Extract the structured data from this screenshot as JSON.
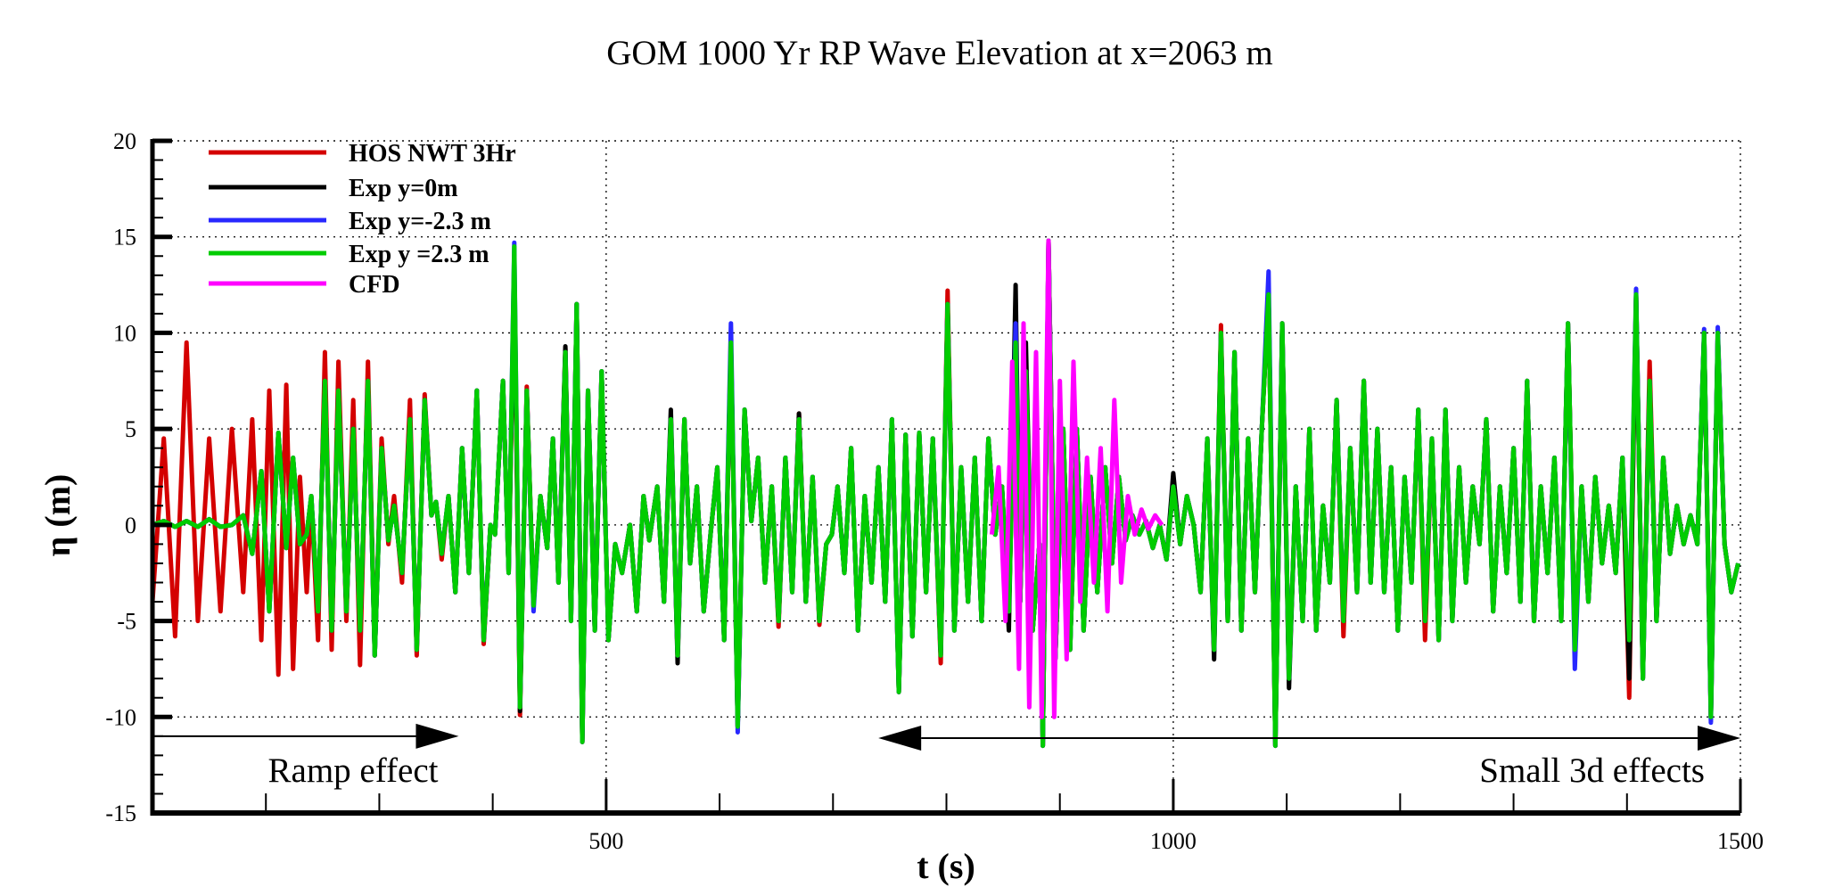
{
  "chart_data": {
    "type": "line",
    "title": "GOM 1000 Yr RP Wave Elevation at x=2063 m",
    "xlabel": "t (s)",
    "ylabel": "η (m)",
    "xlim": [
      100,
      1500
    ],
    "ylim": [
      -15,
      20
    ],
    "x_ticks": [
      500,
      1000,
      1500
    ],
    "x_minor_step": 100,
    "y_ticks": [
      -15,
      -10,
      -5,
      0,
      5,
      10,
      15,
      20
    ],
    "y_minor_step": 1,
    "grid": true,
    "legend_position": "top-left",
    "t": [
      100,
      110,
      120,
      130,
      140,
      150,
      160,
      170,
      180,
      188,
      196,
      203,
      211,
      218,
      224,
      230,
      236,
      240,
      246,
      252,
      258,
      264,
      271,
      277,
      283,
      290,
      296,
      302,
      308,
      313,
      320,
      327,
      333,
      340,
      346,
      350,
      355,
      361,
      367,
      373,
      379,
      386,
      392,
      398,
      402,
      409,
      414,
      419,
      424,
      430,
      436,
      442,
      448,
      453,
      458,
      464,
      469,
      474,
      479,
      484,
      490,
      496,
      502,
      508,
      514,
      521,
      527,
      533,
      538,
      545,
      551,
      557,
      563,
      569,
      574,
      580,
      586,
      592,
      598,
      604,
      610,
      616,
      622,
      628,
      634,
      640,
      646,
      652,
      658,
      664,
      670,
      676,
      682,
      688,
      694,
      699,
      704,
      710,
      716,
      722,
      728,
      734,
      740,
      746,
      752,
      758,
      764,
      770,
      776,
      782,
      788,
      795,
      801,
      807,
      813,
      819,
      825,
      831,
      837,
      843,
      849,
      855,
      861,
      865,
      870,
      876,
      882,
      885,
      890,
      896,
      903,
      909,
      915,
      921,
      927,
      933,
      940,
      946,
      952,
      958,
      964,
      970,
      976,
      982,
      988,
      994,
      1000,
      1006,
      1012,
      1018,
      1024,
      1030,
      1036,
      1042,
      1048,
      1054,
      1060,
      1066,
      1072,
      1078,
      1084,
      1090,
      1096,
      1102,
      1108,
      1114,
      1120,
      1126,
      1132,
      1138,
      1144,
      1150,
      1156,
      1162,
      1168,
      1174,
      1180,
      1186,
      1192,
      1198,
      1204,
      1210,
      1216,
      1222,
      1228,
      1234,
      1240,
      1246,
      1252,
      1258,
      1264,
      1270,
      1276,
      1282,
      1288,
      1294,
      1300,
      1306,
      1312,
      1318,
      1324,
      1330,
      1336,
      1342,
      1348,
      1354,
      1360,
      1366,
      1372,
      1378,
      1384,
      1390,
      1396,
      1402,
      1408,
      1414,
      1420,
      1426,
      1432,
      1438,
      1444,
      1450,
      1456,
      1462,
      1468,
      1474,
      1480,
      1486,
      1492,
      1498
    ],
    "series": [
      {
        "name": "HOS NWT 3Hr",
        "color": "#d40000",
        "values": [
          -4,
          4.5,
          -5.8,
          9.5,
          -5,
          4.5,
          -4.5,
          5,
          -3.5,
          5.5,
          -6,
          7,
          -7.8,
          7.3,
          -7.5,
          2.5,
          -3.5,
          1.5,
          -6,
          9,
          -6.5,
          8.5,
          -5,
          6.5,
          -7.3,
          8.5,
          -6.8,
          4.5,
          -1,
          1.5,
          -3,
          6.5,
          -6.8,
          6.8,
          0.5,
          1.2,
          -1.8,
          1.5,
          -3.5,
          4,
          -2.5,
          7,
          -6.2,
          0,
          -0.5,
          7.5,
          -2.5,
          13,
          -9.9,
          7.2,
          -4.2,
          1.5,
          -1.2,
          4.5,
          -3,
          9.2,
          -5,
          11.5,
          -11.3,
          7,
          -5.5,
          8,
          -6,
          -1,
          -2.5,
          0,
          -4.5,
          1.5,
          -0.8,
          2,
          -4,
          5.5,
          -6.8,
          5.5,
          -2,
          2,
          -4.5,
          -0.5,
          3,
          -6,
          9.5,
          -10.5,
          6,
          0.2,
          3.5,
          -3,
          2,
          -5.3,
          3.5,
          -3.5,
          5.8,
          -4,
          2.5,
          -5.2,
          -1,
          -0.5,
          2,
          -2.5,
          4,
          -5.5,
          1.5,
          -3,
          3,
          -4,
          5.5,
          -8.7,
          4.7,
          -5.8,
          4.8,
          -3.5,
          4.5,
          -7.2,
          12.2,
          -5.5,
          3,
          -4,
          3.5,
          -5,
          4.5,
          -0.5,
          2,
          -4.5,
          9.5,
          -4,
          8,
          -5.5,
          -1,
          -11.5,
          14.8,
          -7,
          5,
          -6.5,
          5,
          -5.5,
          2.5,
          -3.5,
          3,
          -2,
          2.5,
          -0.8,
          0.5,
          -0.5,
          0.2,
          -1.2,
          0,
          -1.8,
          2,
          -1,
          1.5,
          0,
          -3.5,
          4.5,
          -6.5,
          10.4,
          -5,
          9,
          -5.5,
          4.5,
          -3.5,
          5,
          12,
          -11.5,
          10.5,
          -8,
          2,
          -5,
          5,
          -5.5,
          1,
          -3,
          6.5,
          -5.8,
          4,
          -3.5,
          7.5,
          -3,
          5,
          -3.5,
          3,
          -5.5,
          2.5,
          -3,
          6,
          -6,
          4.5,
          -6,
          6,
          -5,
          3,
          -3,
          2,
          -1,
          5.5,
          -4.5,
          2,
          -2.5,
          4,
          -4,
          7.5,
          -5,
          2,
          -2.5,
          3.5,
          -5,
          10.5,
          -6.5,
          2,
          -4,
          2.5,
          -2,
          1,
          -2.5,
          3.5,
          -9,
          12,
          -8,
          8.5,
          -5,
          3.5,
          -1.5,
          1,
          -1,
          0.5,
          -1,
          10,
          -10,
          10,
          -1,
          -3.5,
          -2
        ]
      },
      {
        "name": "Exp y=0m",
        "color": "#000000",
        "values": [
          0,
          0.2,
          -0.1,
          0.2,
          -0.1,
          0.3,
          -0.1,
          0,
          0.5,
          -1.5,
          2.8,
          -4.5,
          4.8,
          -1.2,
          3.5,
          -1,
          -0.5,
          1.5,
          -4.5,
          7.5,
          -5.5,
          7,
          -4.5,
          5,
          -5.5,
          7.5,
          -6.8,
          4,
          -0.8,
          1,
          -2.5,
          5.5,
          -6.5,
          6.5,
          0.5,
          1.2,
          -1.5,
          1.5,
          -3.5,
          4,
          -2.5,
          7,
          -6,
          0,
          -0.5,
          7.5,
          -2.5,
          13.5,
          -9.7,
          7,
          -4.2,
          1.5,
          -1.2,
          4.5,
          -3,
          9.3,
          -5,
          11.5,
          -11.3,
          7,
          -5.5,
          8,
          -6,
          -1,
          -2.5,
          0,
          -4.5,
          1.5,
          -0.8,
          2,
          -4,
          6,
          -7.2,
          5.5,
          -2,
          2,
          -4.5,
          -0.5,
          3,
          -6,
          9.5,
          -10.5,
          6,
          0.2,
          3.5,
          -3,
          2,
          -5,
          3.5,
          -3.5,
          5.8,
          -4,
          2.5,
          -5,
          -1,
          -0.5,
          2,
          -2.5,
          4,
          -5.5,
          1.5,
          -3,
          3,
          -4,
          5.5,
          -8.7,
          4.7,
          -5.8,
          4.8,
          -3.5,
          4.5,
          -6.8,
          11.5,
          -5.5,
          3,
          -4,
          3.5,
          -5,
          4.5,
          -0.5,
          2,
          -5.5,
          12.5,
          -4,
          9.5,
          -5.5,
          -1,
          -11.5,
          14.8,
          -7,
          5,
          -6.5,
          5,
          -5.5,
          2.5,
          -3.5,
          3,
          -2,
          2.5,
          -0.8,
          0.5,
          -0.5,
          0.2,
          -1.2,
          0,
          -1.8,
          2.7,
          -1,
          1.5,
          0,
          -3.5,
          4.5,
          -7,
          10,
          -5,
          9,
          -5.5,
          4.5,
          -3.5,
          5,
          12,
          -11.5,
          10.5,
          -8.5,
          2,
          -5,
          5,
          -5.5,
          1,
          -3,
          6.5,
          -5,
          4,
          -3.5,
          7.5,
          -3,
          5,
          -3.5,
          3,
          -5.5,
          2.5,
          -3,
          6,
          -5,
          4.5,
          -6,
          6,
          -5,
          3,
          -3,
          2,
          -1,
          5.5,
          -4.5,
          2,
          -2.5,
          4,
          -4,
          7.5,
          -5,
          2,
          -2.5,
          3.5,
          -5,
          10.5,
          -6.5,
          2,
          -4,
          2.5,
          -2,
          1,
          -2.5,
          3.5,
          -8,
          12,
          -8,
          7.5,
          -5,
          3.5,
          -1.5,
          1,
          -1,
          0.5,
          -1,
          10,
          -10,
          10,
          -1,
          -3.5,
          -2
        ]
      },
      {
        "name": "Exp y=-2.3 m",
        "color": "#2828ff",
        "values": [
          0,
          0.2,
          -0.1,
          0.2,
          -0.1,
          0.3,
          -0.1,
          0,
          0.5,
          -1.5,
          2.8,
          -4.5,
          4.8,
          -1.2,
          3.5,
          -1,
          -0.5,
          1.5,
          -4.5,
          7.5,
          -5.5,
          7,
          -4.5,
          5,
          -5.5,
          7.5,
          -6.8,
          4,
          -0.8,
          1,
          -2.5,
          5.5,
          -6.5,
          6.5,
          0.5,
          1.2,
          -1.5,
          1.5,
          -3.5,
          4,
          -2.5,
          7,
          -6,
          0,
          -0.5,
          7.5,
          -2.5,
          14.7,
          -9.5,
          7,
          -4.5,
          1.5,
          -1.2,
          4.5,
          -3,
          9,
          -5,
          11.5,
          -11.3,
          7,
          -5.5,
          8,
          -6,
          -1,
          -2.5,
          0,
          -4.5,
          1.5,
          -0.8,
          2,
          -4,
          5.5,
          -6.8,
          5.5,
          -2,
          2,
          -4.5,
          -0.5,
          3,
          -6,
          10.5,
          -10.8,
          6,
          0.2,
          3.5,
          -3,
          2,
          -5,
          3.5,
          -3.5,
          5.5,
          -4,
          2.5,
          -5,
          -1,
          -0.5,
          2,
          -2.5,
          4,
          -5.5,
          1.5,
          -3,
          3,
          -4,
          5.5,
          -8.7,
          4.7,
          -5.8,
          4.8,
          -3.5,
          4.5,
          -6.8,
          11.5,
          -5.5,
          3,
          -4,
          3.5,
          -5,
          4.5,
          -0.5,
          2,
          -4.5,
          10.5,
          -4,
          8,
          -5.5,
          -1,
          -11.5,
          14.8,
          -7,
          5,
          -6.5,
          5,
          -5.5,
          2.5,
          -3.5,
          3,
          -2,
          2.5,
          -0.8,
          0.5,
          -0.5,
          0.2,
          -1.2,
          0,
          -1.8,
          2,
          -1,
          1.5,
          0,
          -3.5,
          4.5,
          -6.5,
          10,
          -5,
          9,
          -5.5,
          4.5,
          -3.5,
          5,
          13.2,
          -11.5,
          10.5,
          -8,
          2,
          -5,
          5,
          -5.5,
          1,
          -3,
          6.5,
          -5,
          4,
          -3.5,
          7.5,
          -3,
          5,
          -3.5,
          3,
          -5.5,
          2.5,
          -3,
          6,
          -5,
          4.5,
          -6,
          6,
          -5,
          3,
          -3,
          2,
          -1,
          5.5,
          -4.5,
          2,
          -2.5,
          4,
          -4,
          7.5,
          -5,
          2,
          -2.5,
          3.5,
          -5,
          10.5,
          -7.5,
          2,
          -4,
          2.5,
          -2,
          1,
          -2.5,
          3.5,
          -6,
          12.3,
          -8,
          7.5,
          -5,
          3.5,
          -1.5,
          1,
          -1,
          0.5,
          -1,
          10.2,
          -10.3,
          10.3,
          -1,
          -3.5,
          -2
        ]
      },
      {
        "name": "Exp y =2.3 m",
        "color": "#00cc00",
        "values": [
          0,
          0.2,
          -0.1,
          0.2,
          -0.1,
          0.3,
          -0.1,
          0,
          0.5,
          -1.5,
          2.8,
          -4.5,
          4.8,
          -1.2,
          3.5,
          -1,
          -0.5,
          1.5,
          -4.5,
          7.5,
          -5.5,
          7,
          -4.5,
          5,
          -5.5,
          7.5,
          -6.8,
          4,
          -0.8,
          1,
          -2.5,
          5.5,
          -6.5,
          6.5,
          0.5,
          1.2,
          -1.5,
          1.5,
          -3.5,
          4,
          -2.5,
          7,
          -6,
          0,
          -0.5,
          7.5,
          -2.5,
          14.5,
          -9.5,
          7,
          -4.2,
          1.5,
          -1.2,
          4.5,
          -3,
          9,
          -5,
          11.5,
          -11.3,
          7,
          -5.5,
          8,
          -6,
          -1,
          -2.5,
          0,
          -4.5,
          1.5,
          -0.8,
          2,
          -4,
          5.5,
          -6.8,
          5.5,
          -2,
          2,
          -4.5,
          -0.5,
          3,
          -6,
          9.5,
          -10.5,
          6,
          0.2,
          3.5,
          -3,
          2,
          -5,
          3.5,
          -3.5,
          5.5,
          -4,
          2.5,
          -5,
          -1,
          -0.5,
          2,
          -2.5,
          4,
          -5.5,
          1.5,
          -3,
          3,
          -4,
          5.5,
          -8.7,
          4.7,
          -5.8,
          4.8,
          -3.5,
          4.5,
          -6.8,
          11.5,
          -5.5,
          3,
          -4,
          3.5,
          -5,
          4.5,
          -0.5,
          2,
          -4.5,
          9.5,
          -4,
          8,
          -5.5,
          -1,
          -11.5,
          14.8,
          -7,
          5,
          -6.5,
          5,
          -5.5,
          2.5,
          -3.5,
          3,
          -2,
          2.5,
          -0.8,
          0.5,
          -0.5,
          0.2,
          -1.2,
          0,
          -1.8,
          2,
          -1,
          1.5,
          0,
          -3.5,
          4.5,
          -6.5,
          10,
          -5,
          9,
          -5.5,
          4.5,
          -3.5,
          5,
          12,
          -11.5,
          10.5,
          -8,
          2,
          -5,
          5,
          -5.5,
          1,
          -3,
          6.5,
          -5,
          4,
          -3.5,
          7.5,
          -3,
          5,
          -3.5,
          3,
          -5.5,
          2.5,
          -3,
          6,
          -5,
          4.5,
          -6,
          6,
          -5,
          3,
          -3,
          2,
          -1,
          5.5,
          -4.5,
          2,
          -2.5,
          4,
          -4,
          7.5,
          -5,
          2,
          -2.5,
          3.5,
          -5,
          10.5,
          -6.5,
          2,
          -4,
          2.5,
          -2,
          1,
          -2.5,
          3.5,
          -6,
          12,
          -8,
          7.5,
          -5,
          3.5,
          -1.5,
          1,
          -1,
          0.5,
          -1,
          10,
          -10,
          10,
          -1,
          -3.5,
          -2
        ]
      },
      {
        "name": "CFD",
        "color": "#ff00ff",
        "t": [
          840,
          846,
          852,
          858,
          864,
          868,
          873,
          879,
          884,
          890,
          895,
          900,
          906,
          912,
          918,
          924,
          930,
          936,
          942,
          948,
          954,
          960,
          966,
          972,
          978,
          984,
          990
        ],
        "values": [
          -0.5,
          3,
          -5,
          8.5,
          -7.5,
          10.5,
          -9.5,
          9,
          -10,
          14.8,
          -10,
          7.5,
          -7,
          8.5,
          -4,
          3.5,
          -3,
          4,
          -4.5,
          6.5,
          -3,
          1.5,
          -0.5,
          0.8,
          -0.2,
          0.5,
          0
        ]
      }
    ],
    "annotations": [
      {
        "text": "Ramp effect",
        "arrow": "right",
        "t_range": [
          100,
          370
        ],
        "eta": -11
      },
      {
        "text": "Small 3d effects",
        "arrow": "both",
        "t_range": [
          740,
          1500
        ],
        "eta": -11.1
      }
    ]
  }
}
